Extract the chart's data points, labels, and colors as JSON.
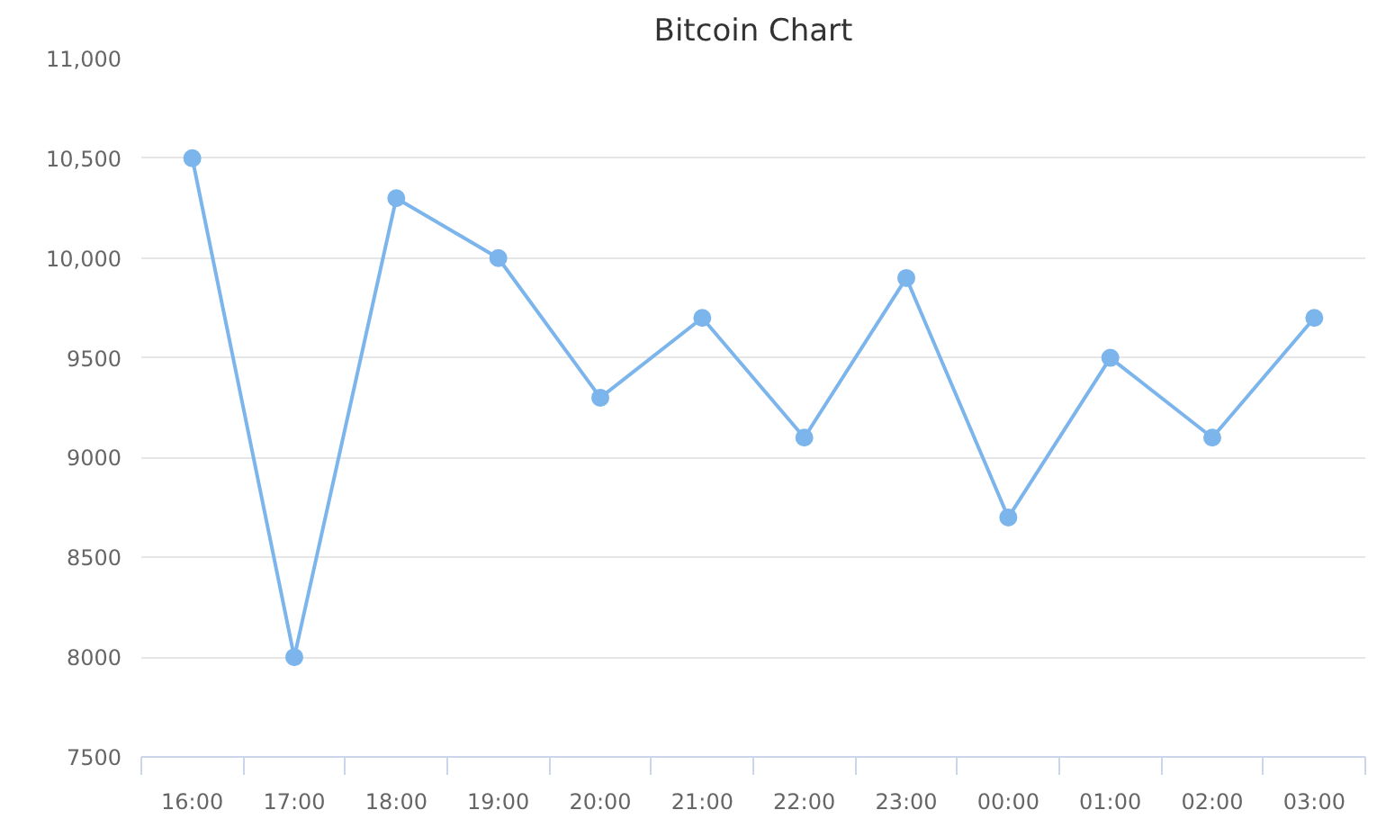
{
  "chart_data": {
    "type": "line",
    "title": "Bitcoin Chart",
    "categories": [
      "16:00",
      "17:00",
      "18:00",
      "19:00",
      "20:00",
      "21:00",
      "22:00",
      "23:00",
      "00:00",
      "01:00",
      "02:00",
      "03:00"
    ],
    "series": [
      {
        "color": "#7cb5ec",
        "values": [
          10500,
          8000,
          10300,
          10000,
          9300,
          9700,
          9100,
          9900,
          8700,
          9500,
          9100,
          9700
        ]
      }
    ],
    "ylim": [
      7500,
      11000
    ],
    "yticks": [
      7500,
      8000,
      8500,
      9000,
      9500,
      {
        "value": 10000,
        "label": "10,000"
      },
      {
        "value": 10500,
        "label": "10,500"
      },
      {
        "value": 11000,
        "label": "11,000"
      }
    ],
    "grid": "y",
    "marker": "circle",
    "line_style": "solid"
  }
}
